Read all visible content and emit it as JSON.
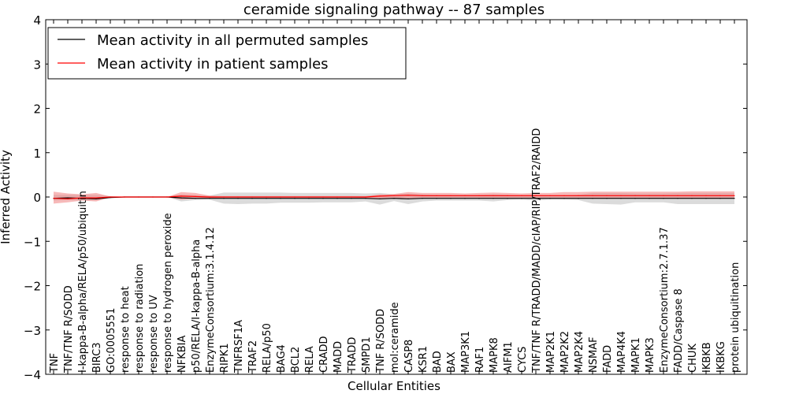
{
  "chart_data": {
    "type": "line",
    "title": "ceramide signaling pathway -- 87 samples",
    "xlabel": "Cellular Entities",
    "ylabel": "Inferred Activity",
    "ylim": [
      -4,
      4
    ],
    "yticks": [
      -4,
      -3,
      -2,
      -1,
      0,
      1,
      2,
      3,
      4
    ],
    "ytick_labels": [
      "−4",
      "−3",
      "−2",
      "−1",
      "0",
      "1",
      "2",
      "3",
      "4"
    ],
    "legend_position": "top-left",
    "categories": [
      "TNF",
      "TNF/TNF R/SODD",
      "I-kappa-B-alpha/RELA/p50/ubiquitin",
      "BIRC3",
      "GO:0005551",
      "response to heat",
      "response to radiation",
      "response to UV",
      "response to hydrogen peroxide",
      "NFKBIA",
      "p50/RELA/I-kappa-B-alpha",
      "EnzymeConsortium:3.1.4.12",
      "RIPK1",
      "TNFRSF1A",
      "TRAF2",
      "RELA/p50",
      "BAG4",
      "BCL2",
      "RELA",
      "CRADD",
      "MADD",
      "TRADD",
      "SMPD1",
      "TNF R/SODD",
      "mol:ceramide",
      "CASP8",
      "KSR1",
      "BAD",
      "BAX",
      "MAP3K1",
      "RAF1",
      "MAPK8",
      "AIFM1",
      "CYCS",
      "TNF/TNF R/TRADD/MADD/cIAP/RIP/TRAF2/RAIDD",
      "MAP2K1",
      "MAP2K2",
      "MAP2K4",
      "NSMAF",
      "FADD",
      "MAP4K4",
      "MAPK1",
      "MAPK3",
      "EnzymeConsortium:2.7.1.37",
      "FADD/Caspase 8",
      "CHUK",
      "IKBKB",
      "IKBKG",
      "protein ubiquitination"
    ],
    "series": [
      {
        "name": "Mean activity in all permuted samples",
        "color": "#000000",
        "band_color": "#999999",
        "values": [
          -0.03,
          -0.02,
          -0.03,
          -0.04,
          -0.01,
          0.0,
          0.0,
          0.0,
          0.0,
          -0.02,
          -0.03,
          -0.03,
          -0.03,
          -0.03,
          -0.03,
          -0.03,
          -0.03,
          -0.03,
          -0.03,
          -0.03,
          -0.03,
          -0.03,
          -0.03,
          -0.04,
          -0.03,
          -0.04,
          -0.03,
          -0.03,
          -0.03,
          -0.03,
          -0.03,
          -0.03,
          -0.03,
          -0.03,
          -0.03,
          -0.03,
          -0.03,
          -0.03,
          -0.03,
          -0.03,
          -0.03,
          -0.03,
          -0.03,
          -0.03,
          -0.03,
          -0.03,
          -0.03,
          -0.03,
          -0.03
        ],
        "lower": [
          -0.08,
          -0.07,
          -0.08,
          -0.08,
          -0.02,
          0.0,
          0.0,
          0.0,
          0.0,
          -0.1,
          -0.07,
          -0.06,
          -0.15,
          -0.16,
          -0.15,
          -0.15,
          -0.13,
          -0.13,
          -0.13,
          -0.12,
          -0.12,
          -0.12,
          -0.1,
          -0.17,
          -0.09,
          -0.16,
          -0.1,
          -0.08,
          -0.08,
          -0.08,
          -0.08,
          -0.1,
          -0.07,
          -0.06,
          -0.08,
          -0.06,
          -0.06,
          -0.07,
          -0.15,
          -0.16,
          -0.17,
          -0.12,
          -0.12,
          -0.12,
          -0.16,
          -0.16,
          -0.16,
          -0.16,
          -0.16
        ],
        "upper": [
          0.05,
          0.05,
          0.05,
          0.05,
          0.02,
          0.0,
          0.0,
          0.0,
          0.0,
          0.06,
          0.04,
          0.03,
          0.1,
          0.1,
          0.1,
          0.1,
          0.1,
          0.09,
          0.09,
          0.09,
          0.09,
          0.09,
          0.08,
          0.09,
          0.06,
          0.08,
          0.06,
          0.05,
          0.05,
          0.05,
          0.05,
          0.06,
          0.05,
          0.04,
          0.05,
          0.04,
          0.04,
          0.05,
          0.09,
          0.09,
          0.09,
          0.08,
          0.08,
          0.08,
          0.09,
          0.09,
          0.09,
          0.09,
          0.09
        ]
      },
      {
        "name": "Mean activity in patient samples",
        "color": "#ff0000",
        "band_color": "#f08080",
        "values": [
          -0.03,
          -0.04,
          -0.02,
          -0.02,
          0.0,
          0.0,
          0.0,
          0.0,
          0.0,
          0.02,
          0.01,
          0.0,
          0.0,
          0.0,
          0.0,
          0.0,
          0.0,
          0.0,
          0.0,
          0.0,
          0.0,
          0.0,
          0.0,
          0.02,
          0.03,
          0.04,
          0.03,
          0.03,
          0.03,
          0.03,
          0.03,
          0.03,
          0.03,
          0.03,
          0.03,
          0.03,
          0.03,
          0.03,
          0.03,
          0.03,
          0.03,
          0.03,
          0.03,
          0.03,
          0.03,
          0.03,
          0.03,
          0.03,
          0.03
        ],
        "lower": [
          -0.15,
          -0.12,
          -0.08,
          -0.1,
          -0.01,
          0.0,
          0.0,
          0.0,
          0.0,
          -0.06,
          -0.04,
          -0.02,
          -0.01,
          -0.01,
          -0.01,
          -0.01,
          -0.01,
          -0.01,
          -0.01,
          -0.01,
          -0.01,
          -0.01,
          -0.02,
          -0.03,
          -0.04,
          -0.03,
          -0.02,
          -0.02,
          -0.02,
          -0.02,
          -0.02,
          -0.03,
          -0.02,
          -0.02,
          -0.03,
          -0.03,
          -0.04,
          -0.04,
          -0.04,
          -0.04,
          -0.04,
          -0.04,
          -0.04,
          -0.04,
          -0.04,
          -0.04,
          -0.04,
          -0.04,
          -0.04
        ],
        "upper": [
          0.12,
          0.08,
          0.06,
          0.09,
          0.01,
          0.0,
          0.0,
          0.0,
          0.0,
          0.11,
          0.09,
          0.03,
          0.02,
          0.02,
          0.02,
          0.02,
          0.02,
          0.02,
          0.02,
          0.02,
          0.02,
          0.02,
          0.02,
          0.06,
          0.07,
          0.11,
          0.09,
          0.09,
          0.09,
          0.08,
          0.09,
          0.1,
          0.09,
          0.08,
          0.09,
          0.09,
          0.11,
          0.11,
          0.12,
          0.12,
          0.12,
          0.12,
          0.12,
          0.12,
          0.12,
          0.13,
          0.13,
          0.13,
          0.13
        ]
      }
    ]
  }
}
